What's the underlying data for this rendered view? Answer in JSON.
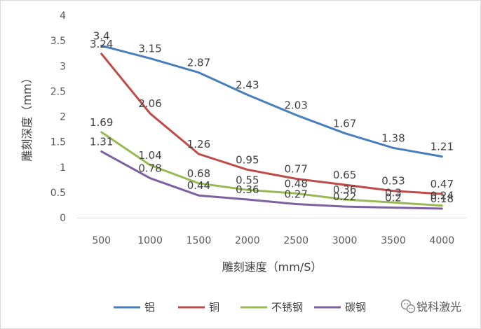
{
  "chart_data": {
    "type": "line",
    "x": [
      500,
      1000,
      1500,
      2000,
      2500,
      3000,
      3500,
      4000
    ],
    "tick_labels_x": [
      "500",
      "1000",
      "1500",
      "2000",
      "2500",
      "3000",
      "3500",
      "4000"
    ],
    "tick_labels_y": [
      "0",
      "0.5",
      "1",
      "1.5",
      "2",
      "2.5",
      "3",
      "3.5",
      "4"
    ],
    "ylim": [
      0,
      4
    ],
    "xlabel": "雕刻速度（mm/S）",
    "ylabel": "雕刻深度（mm）",
    "grid": false,
    "legend_position": "bottom",
    "series": [
      {
        "name": "铝",
        "color": "#4a7ebb",
        "values": [
          3.4,
          3.15,
          2.87,
          2.43,
          2.03,
          1.67,
          1.38,
          1.21
        ],
        "labels": [
          "3.4",
          "3.15",
          "2.87",
          "2.43",
          "2.03",
          "1.67",
          "1.38",
          "1.21"
        ]
      },
      {
        "name": "铜",
        "color": "#be4b48",
        "values": [
          3.24,
          2.06,
          1.26,
          0.95,
          0.77,
          0.65,
          0.53,
          0.47
        ],
        "labels": [
          "3.24",
          "2.06",
          "1.26",
          "0.95",
          "0.77",
          "0.65",
          "0.53",
          "0.47"
        ]
      },
      {
        "name": "不锈钢",
        "color": "#98b954",
        "values": [
          1.69,
          1.04,
          0.68,
          0.55,
          0.48,
          0.36,
          0.3,
          0.24
        ],
        "labels": [
          "1.69",
          "1.04",
          "0.68",
          "0.55",
          "0.48",
          "0.36",
          "0.3",
          "0.24"
        ]
      },
      {
        "name": "碳钢",
        "color": "#7d60a0",
        "values": [
          1.31,
          0.78,
          0.44,
          0.36,
          0.27,
          0.22,
          0.2,
          0.18
        ],
        "labels": [
          "1.31",
          "0.78",
          "0.44",
          "0.36",
          "0.27",
          "0.22",
          "0.2",
          "0.18"
        ]
      }
    ]
  },
  "watermark": {
    "text": "锐科激光",
    "icon": "wechat-icon"
  }
}
